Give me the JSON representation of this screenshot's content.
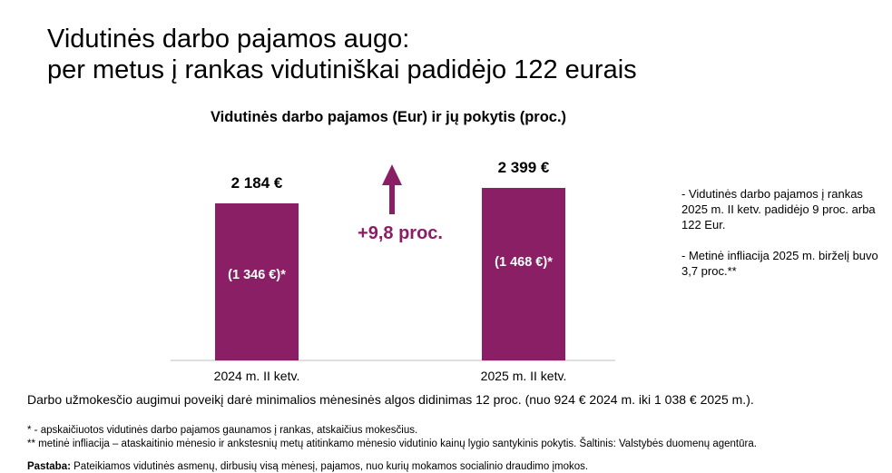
{
  "header": {
    "title_line1": "Vidutinės darbo pajamos augo:",
    "title_line2": "per metus į rankas vidutiniškai padidėjo 122 eurais"
  },
  "colors": {
    "accent": "#8b1f65",
    "text": "#000000",
    "axis": "#bfbfbf",
    "bar_label": "#ffffff"
  },
  "chart_data": {
    "type": "bar",
    "title": "Vidutinės darbo pajamos (Eur) ir jų pokytis (proc.)",
    "categories": [
      "2024 m. II ketv.",
      "2025 m. II ketv."
    ],
    "values": [
      2184,
      2399
    ],
    "value_labels": [
      "2 184 €",
      "2 399 €"
    ],
    "inner_labels": [
      "(1 346 €)*",
      "(1 468 €)*"
    ],
    "change_label": "+9,8 proc.",
    "change_icon": "arrow-up-icon",
    "ylim": [
      0,
      2700
    ],
    "grid": false
  },
  "notes": [
    "- Vidutinės darbo pajamos į rankas 2025 m. II ketv. padidėjo 9 proc. arba 122 Eur.",
    "- Metinė infliacija 2025 m. birželį buvo 3,7 proc.**"
  ],
  "remark": "Darbo užmokesčio augimui poveikį darė minimalios mėnesinės algos didinimas 12 proc. (nuo 924 € 2024 m. iki 1 038 €  2025 m.).",
  "footnotes": {
    "note1": "* - apskaičiuotos vidutinės darbo pajamos gaunamos į rankas, atskaičius mokesčius.",
    "note2": "** metinė infliacija – ataskaitinio mėnesio ir ankstesnių metų atitinkamo mėnesio vidutinio kainų lygio santykinis pokytis. Šaltinis: Valstybės duomenų agentūra.",
    "note3_label": "Pastaba:",
    "note3_text": " Pateikiamos vidutinės asmenų, dirbusių visą mėnesį, pajamos, nuo kurių mokamos socialinio draudimo įmokos."
  }
}
